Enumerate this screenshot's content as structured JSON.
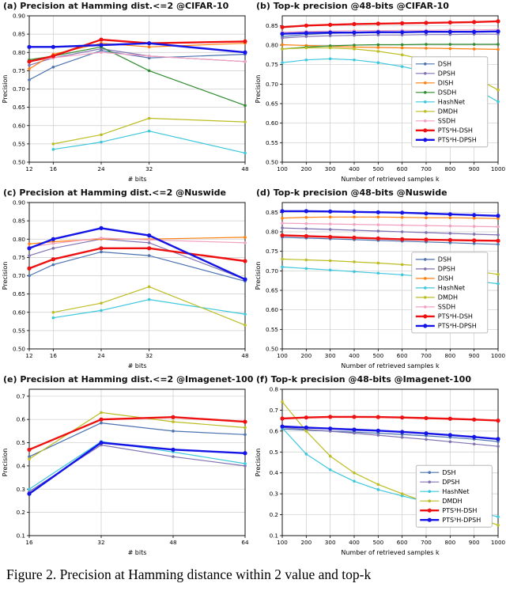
{
  "page": {
    "caption": "Figure 2. Precision at Hamming distance within 2 value and top-k"
  },
  "chart_data": [
    {
      "id": "a",
      "type": "line",
      "title": "(a) Precision at Hamming dist.<=2 @CIFAR-10",
      "xlabel": "# bits",
      "ylabel": "Precision",
      "x": [
        12,
        16,
        24,
        32,
        48
      ],
      "xticks": [
        12,
        16,
        24,
        32,
        48
      ],
      "xlim": [
        12,
        48
      ],
      "ylim": [
        0.5,
        0.9
      ],
      "yticks": [
        0.5,
        0.55,
        0.6,
        0.65,
        0.7,
        0.75,
        0.8,
        0.85,
        0.9
      ],
      "ydecimals": 2,
      "grid": true,
      "series": [
        {
          "name": "DSH",
          "color": "#4C72B0",
          "values": [
            0.725,
            0.76,
            0.805,
            0.785,
            0.795
          ]
        },
        {
          "name": "DPSH",
          "color": "#8172B2",
          "values": [
            0.765,
            0.785,
            0.81,
            0.79,
            0.775
          ]
        },
        {
          "name": "DISH",
          "color": "#ff7f0e",
          "values": [
            0.755,
            0.795,
            0.825,
            0.815,
            0.825
          ]
        },
        {
          "name": "DSDH",
          "color": "#2e8b2e",
          "values": [
            0.78,
            0.79,
            0.815,
            0.75,
            0.655
          ]
        },
        {
          "name": "HashNet",
          "color": "#3cc7dd",
          "values": [
            null,
            0.535,
            0.555,
            0.585,
            0.525
          ]
        },
        {
          "name": "DMDH",
          "color": "#bcbd22",
          "values": [
            null,
            0.55,
            0.575,
            0.62,
            0.61
          ]
        },
        {
          "name": "SSDH",
          "color": "#f2a0c0",
          "values": [
            0.775,
            0.785,
            0.8,
            0.79,
            0.775
          ]
        },
        {
          "name": "PTS³H-DSH",
          "color": "#ee1111",
          "thick": true,
          "values": [
            0.775,
            0.79,
            0.835,
            0.825,
            0.83
          ]
        },
        {
          "name": "PTS³H-DPSH",
          "color": "#1414e6",
          "thick": true,
          "values": [
            0.815,
            0.815,
            0.82,
            0.825,
            0.8
          ]
        }
      ]
    },
    {
      "id": "b",
      "type": "line",
      "title": "(b) Top-k precision @48-bits @CIFAR-10",
      "xlabel": "Number of retrieved samples k",
      "ylabel": "Precision",
      "x": [
        100,
        200,
        300,
        400,
        500,
        600,
        700,
        800,
        900,
        1000
      ],
      "xticks": [
        100,
        200,
        300,
        400,
        500,
        600,
        700,
        800,
        900,
        1000
      ],
      "xlim": [
        100,
        1000
      ],
      "ylim": [
        0.5,
        0.875
      ],
      "yticks": [
        0.5,
        0.55,
        0.6,
        0.65,
        0.7,
        0.75,
        0.8,
        0.85
      ],
      "ydecimals": 2,
      "grid": true,
      "legend": {
        "x": 0.6,
        "y": 0.28
      },
      "series": [
        {
          "name": "DSH",
          "color": "#4C72B0",
          "values": [
            0.822,
            0.827,
            0.83,
            0.831,
            0.832,
            0.832,
            0.833,
            0.833,
            0.834,
            0.834
          ]
        },
        {
          "name": "DPSH",
          "color": "#8172B2",
          "values": [
            0.818,
            0.822,
            0.824,
            0.825,
            0.826,
            0.826,
            0.827,
            0.827,
            0.828,
            0.828
          ]
        },
        {
          "name": "DISH",
          "color": "#ff7f0e",
          "values": [
            0.801,
            0.799,
            0.797,
            0.795,
            0.794,
            0.793,
            0.792,
            0.791,
            0.79,
            0.789
          ]
        },
        {
          "name": "DSDH",
          "color": "#2e8b2e",
          "values": [
            0.79,
            0.795,
            0.798,
            0.8,
            0.801,
            0.801,
            0.802,
            0.802,
            0.802,
            0.802
          ]
        },
        {
          "name": "HashNet",
          "color": "#3cc7dd",
          "values": [
            0.755,
            0.762,
            0.765,
            0.762,
            0.755,
            0.745,
            0.732,
            0.715,
            0.69,
            0.655
          ]
        },
        {
          "name": "DMDH",
          "color": "#bcbd22",
          "values": [
            0.79,
            0.793,
            0.793,
            0.79,
            0.784,
            0.775,
            0.762,
            0.743,
            0.718,
            0.685
          ]
        },
        {
          "name": "SSDH",
          "color": "#f2a0c0",
          "values": [
            0.833,
            0.835,
            0.836,
            0.837,
            0.837,
            0.838,
            0.838,
            0.839,
            0.839,
            0.84
          ]
        },
        {
          "name": "PTS³H-DSH",
          "color": "#ee1111",
          "thick": true,
          "values": [
            0.846,
            0.85,
            0.852,
            0.854,
            0.855,
            0.856,
            0.857,
            0.858,
            0.859,
            0.861
          ]
        },
        {
          "name": "PTS³H-DPSH",
          "color": "#1414e6",
          "thick": true,
          "values": [
            0.829,
            0.831,
            0.832,
            0.832,
            0.833,
            0.833,
            0.834,
            0.834,
            0.834,
            0.835
          ]
        }
      ]
    },
    {
      "id": "c",
      "type": "line",
      "title": "(c) Precision at Hamming dist.<=2 @Nuswide",
      "xlabel": "# bits",
      "ylabel": "Precision",
      "x": [
        12,
        16,
        24,
        32,
        48
      ],
      "xticks": [
        12,
        16,
        24,
        32,
        48
      ],
      "xlim": [
        12,
        48
      ],
      "ylim": [
        0.5,
        0.9
      ],
      "yticks": [
        0.5,
        0.55,
        0.6,
        0.65,
        0.7,
        0.75,
        0.8,
        0.85,
        0.9
      ],
      "ydecimals": 2,
      "grid": true,
      "series": [
        {
          "name": "DSH",
          "color": "#4C72B0",
          "values": [
            0.7,
            0.73,
            0.765,
            0.755,
            0.685
          ]
        },
        {
          "name": "DPSH",
          "color": "#8172B2",
          "values": [
            0.755,
            0.775,
            0.8,
            0.79,
            0.69
          ]
        },
        {
          "name": "DISH",
          "color": "#ff7f0e",
          "values": [
            0.787,
            0.793,
            0.8,
            0.8,
            0.805
          ]
        },
        {
          "name": "HashNet",
          "color": "#3cc7dd",
          "values": [
            null,
            0.585,
            0.605,
            0.635,
            0.595
          ]
        },
        {
          "name": "DMDH",
          "color": "#bcbd22",
          "values": [
            null,
            0.6,
            0.625,
            0.67,
            0.565
          ]
        },
        {
          "name": "SSDH",
          "color": "#f2a0c0",
          "values": [
            0.778,
            0.788,
            0.803,
            0.798,
            0.79
          ]
        },
        {
          "name": "PTS³H-DSH",
          "color": "#ee1111",
          "thick": true,
          "values": [
            0.72,
            0.745,
            0.775,
            0.775,
            0.74
          ]
        },
        {
          "name": "PTS³H-DPSH",
          "color": "#1414e6",
          "thick": true,
          "values": [
            0.775,
            0.8,
            0.83,
            0.81,
            0.69
          ]
        }
      ]
    },
    {
      "id": "d",
      "type": "line",
      "title": "(d) Top-k precision @48-bits @Nuswide",
      "xlabel": "Number of retrieved samples k",
      "ylabel": "Precision",
      "x": [
        100,
        200,
        300,
        400,
        500,
        600,
        700,
        800,
        900,
        1000
      ],
      "xticks": [
        100,
        200,
        300,
        400,
        500,
        600,
        700,
        800,
        900,
        1000
      ],
      "xlim": [
        100,
        1000
      ],
      "ylim": [
        0.5,
        0.875
      ],
      "yticks": [
        0.5,
        0.55,
        0.6,
        0.65,
        0.7,
        0.75,
        0.8,
        0.85
      ],
      "ydecimals": 2,
      "grid": true,
      "legend": {
        "x": 0.6,
        "y": 0.34
      },
      "series": [
        {
          "name": "DSH",
          "color": "#4C72B0",
          "values": [
            0.786,
            0.784,
            0.782,
            0.78,
            0.778,
            0.776,
            0.774,
            0.772,
            0.77,
            0.768
          ]
        },
        {
          "name": "DPSH",
          "color": "#8172B2",
          "values": [
            0.81,
            0.808,
            0.806,
            0.804,
            0.802,
            0.8,
            0.798,
            0.796,
            0.794,
            0.792
          ]
        },
        {
          "name": "DISH",
          "color": "#ff7f0e",
          "values": [
            0.835,
            0.837,
            0.838,
            0.838,
            0.838,
            0.837,
            0.836,
            0.836,
            0.835,
            0.834
          ]
        },
        {
          "name": "HashNet",
          "color": "#3cc7dd",
          "values": [
            0.71,
            0.706,
            0.702,
            0.698,
            0.694,
            0.69,
            0.685,
            0.68,
            0.674,
            0.667
          ]
        },
        {
          "name": "DMDH",
          "color": "#bcbd22",
          "values": [
            0.73,
            0.728,
            0.726,
            0.723,
            0.72,
            0.716,
            0.712,
            0.707,
            0.7,
            0.691
          ]
        },
        {
          "name": "SSDH",
          "color": "#f2a0c0",
          "values": [
            0.822,
            0.821,
            0.82,
            0.819,
            0.818,
            0.817,
            0.816,
            0.815,
            0.814,
            0.813
          ]
        },
        {
          "name": "PTS³H-DSH",
          "color": "#ee1111",
          "thick": true,
          "values": [
            0.791,
            0.789,
            0.787,
            0.785,
            0.783,
            0.781,
            0.78,
            0.779,
            0.778,
            0.777
          ]
        },
        {
          "name": "PTS³H-DPSH",
          "color": "#1414e6",
          "thick": true,
          "values": [
            0.853,
            0.853,
            0.852,
            0.851,
            0.85,
            0.849,
            0.847,
            0.845,
            0.843,
            0.841
          ]
        }
      ]
    },
    {
      "id": "e",
      "type": "line",
      "title": "(e) Precision at Hamming dist.<=2 @Imagenet-100",
      "xlabel": "# bits",
      "ylabel": "Precision",
      "x": [
        16,
        32,
        48,
        64
      ],
      "xticks": [
        16,
        32,
        48,
        64
      ],
      "xlim": [
        16,
        64
      ],
      "ylim": [
        0.1,
        0.73
      ],
      "yticks": [
        0.1,
        0.2,
        0.3,
        0.4,
        0.5,
        0.6,
        0.7
      ],
      "ydecimals": 1,
      "grid": true,
      "series": [
        {
          "name": "DSH",
          "color": "#4C72B0",
          "values": [
            0.44,
            0.585,
            0.55,
            0.535
          ]
        },
        {
          "name": "DPSH",
          "color": "#8172B2",
          "values": [
            0.29,
            0.49,
            0.44,
            0.4
          ]
        },
        {
          "name": "HashNet",
          "color": "#3cc7dd",
          "values": [
            0.3,
            0.505,
            0.46,
            0.41
          ]
        },
        {
          "name": "DMDH",
          "color": "#bcbd22",
          "values": [
            0.43,
            0.63,
            0.59,
            0.565
          ]
        },
        {
          "name": "PTS³H-DSH",
          "color": "#ee1111",
          "thick": true,
          "values": [
            0.47,
            0.6,
            0.61,
            0.59
          ]
        },
        {
          "name": "PTS³H-DPSH",
          "color": "#1414e6",
          "thick": true,
          "values": [
            0.28,
            0.5,
            0.47,
            0.455
          ]
        }
      ]
    },
    {
      "id": "f",
      "type": "line",
      "title": "(f) Top-k precision @48-bits @Imagenet-100",
      "xlabel": "Number of retrieved samples k",
      "ylabel": "Precision",
      "x": [
        100,
        200,
        300,
        400,
        500,
        600,
        700,
        800,
        900,
        1000
      ],
      "xticks": [
        100,
        200,
        300,
        400,
        500,
        600,
        700,
        800,
        900,
        1000
      ],
      "xlim": [
        100,
        1000
      ],
      "ylim": [
        0.1,
        0.8
      ],
      "yticks": [
        0.1,
        0.2,
        0.3,
        0.4,
        0.5,
        0.6,
        0.7,
        0.8
      ],
      "ydecimals": 1,
      "grid": true,
      "legend": {
        "x": 0.62,
        "y": 0.52
      },
      "series": [
        {
          "name": "DSH",
          "color": "#4C72B0",
          "values": [
            0.61,
            0.605,
            0.6,
            0.595,
            0.59,
            0.584,
            0.577,
            0.57,
            0.561,
            0.55
          ]
        },
        {
          "name": "DPSH",
          "color": "#8172B2",
          "values": [
            0.617,
            0.608,
            0.599,
            0.59,
            0.58,
            0.57,
            0.56,
            0.549,
            0.538,
            0.527
          ]
        },
        {
          "name": "HashNet",
          "color": "#3cc7dd",
          "values": [
            0.615,
            0.49,
            0.415,
            0.36,
            0.32,
            0.29,
            0.262,
            0.238,
            0.215,
            0.19
          ]
        },
        {
          "name": "DMDH",
          "color": "#bcbd22",
          "values": [
            0.74,
            0.6,
            0.48,
            0.4,
            0.345,
            0.3,
            0.26,
            0.225,
            0.19,
            0.15
          ]
        },
        {
          "name": "PTS³H-DSH",
          "color": "#ee1111",
          "thick": true,
          "values": [
            0.66,
            0.665,
            0.668,
            0.668,
            0.667,
            0.665,
            0.662,
            0.659,
            0.655,
            0.65
          ]
        },
        {
          "name": "PTS³H-DPSH",
          "color": "#1414e6",
          "thick": true,
          "values": [
            0.622,
            0.617,
            0.612,
            0.607,
            0.602,
            0.596,
            0.589,
            0.581,
            0.572,
            0.562
          ]
        }
      ]
    }
  ]
}
